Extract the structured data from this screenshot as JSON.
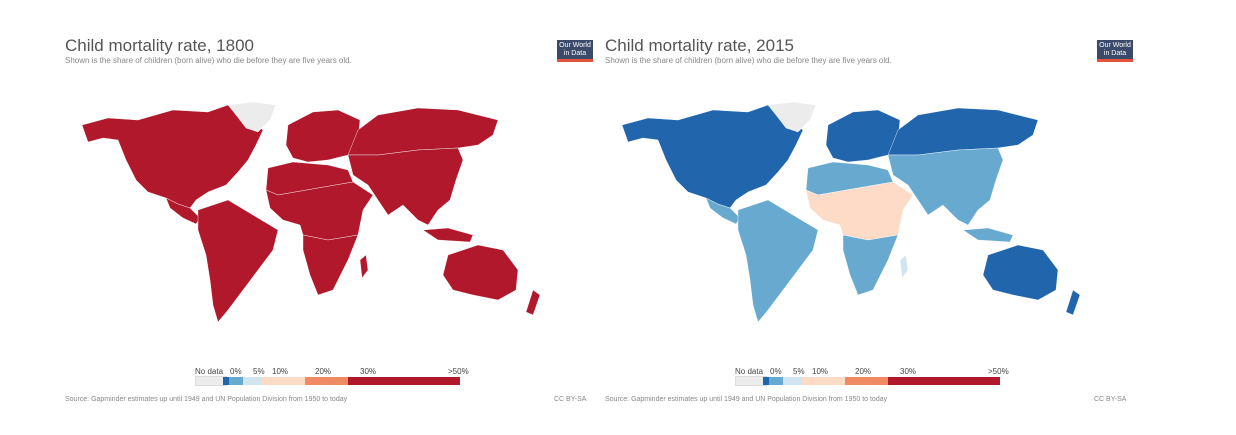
{
  "legend": {
    "no_data": "No data",
    "ticks": [
      "0%",
      "5%",
      "10%",
      "20%",
      "30%",
      ">50%"
    ],
    "colors": {
      "no_data": "#ececec",
      "b0": "#2166ac",
      "b1": "#67a9cf",
      "b2": "#d1e5f0",
      "b3": "#fddbc7",
      "b4": "#ef8a62",
      "b5": "#b2182b"
    }
  },
  "panels": [
    {
      "title": "Child mortality rate, 1800",
      "subtitle": "Shown is the share of children (born alive) who die before they are five years old.",
      "logo": "Our World in Data",
      "source": "Source: Gapminder estimates up until 1949 and UN Population Division from 1950 to today",
      "license": "CC BY-SA",
      "regions": {
        "north_america": "b5",
        "central_america": "b5",
        "greenland": "no_data",
        "south_america": "b5",
        "europe": "b5",
        "russia": "b5",
        "asia_south": "b5",
        "africa_north": "b5",
        "africa_central": "b5",
        "africa_south": "b5",
        "madagascar": "b5",
        "se_asia": "b5",
        "australia": "b5",
        "new_zealand": "b5"
      }
    },
    {
      "title": "Child mortality rate, 2015",
      "subtitle": "Shown is the share of children (born alive) who die before they are five years old.",
      "logo": "Our World in Data",
      "source": "Source: Gapminder estimates up until 1949 and UN Population Division from 1950 to today",
      "license": "CC BY-SA",
      "regions": {
        "north_america": "b0",
        "central_america": "b1",
        "greenland": "no_data",
        "south_america": "b1",
        "europe": "b0",
        "russia": "b0",
        "asia_south": "b1",
        "africa_north": "b1",
        "africa_central": "b3",
        "africa_south": "b1",
        "madagascar": "b2",
        "se_asia": "b1",
        "australia": "b0",
        "new_zealand": "b0"
      }
    }
  ]
}
